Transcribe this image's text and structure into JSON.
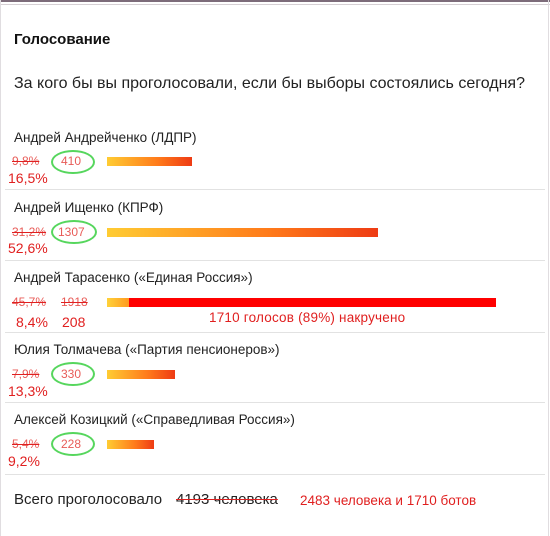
{
  "poll": {
    "title": "Голосование",
    "question": "За кого бы вы проголосовали, если бы выборы состоялись сегодня?",
    "candidates": [
      {
        "name": "Андрей Андрейченко (ЛДПР)",
        "old_percent": "9,8%",
        "votes": "410",
        "new_percent": "16,5%",
        "bar_fraction": 0.165
      },
      {
        "name": "Андрей Ищенко (КПРФ)",
        "old_percent": "31,2%",
        "votes": "1307",
        "new_percent": "52,6%",
        "bar_fraction": 0.526
      },
      {
        "name": "Андрей Тарасенко («Единая Россия»)",
        "old_percent": "45,7%",
        "old_votes": "1918",
        "new_percent": "8,4%",
        "new_votes": "208",
        "real_fraction": 0.084,
        "fake_fraction": 0.89,
        "fake_note": "1710 голосов (89%) накручено"
      },
      {
        "name": "Юлия Толмачева («Партия пенсионеров»)",
        "old_percent": "7,9%",
        "votes": "330",
        "new_percent": "13,3%",
        "bar_fraction": 0.133
      },
      {
        "name": "Алексей Козицкий («Справедливая Россия»)",
        "old_percent": "5,4%",
        "votes": "228",
        "new_percent": "9,2%",
        "bar_fraction": 0.092
      }
    ],
    "total_label": "Всего проголосовало",
    "total_old": "4193 человека",
    "total_new": "2483 человека и 1710 ботов"
  },
  "colors": {
    "bar_gradient_start": "#ffcc33",
    "bar_gradient_end": "#ee3b14",
    "fake_bar": "#ff0000",
    "annotation_red": "#e01f1f",
    "circle_green": "#56d65d"
  }
}
